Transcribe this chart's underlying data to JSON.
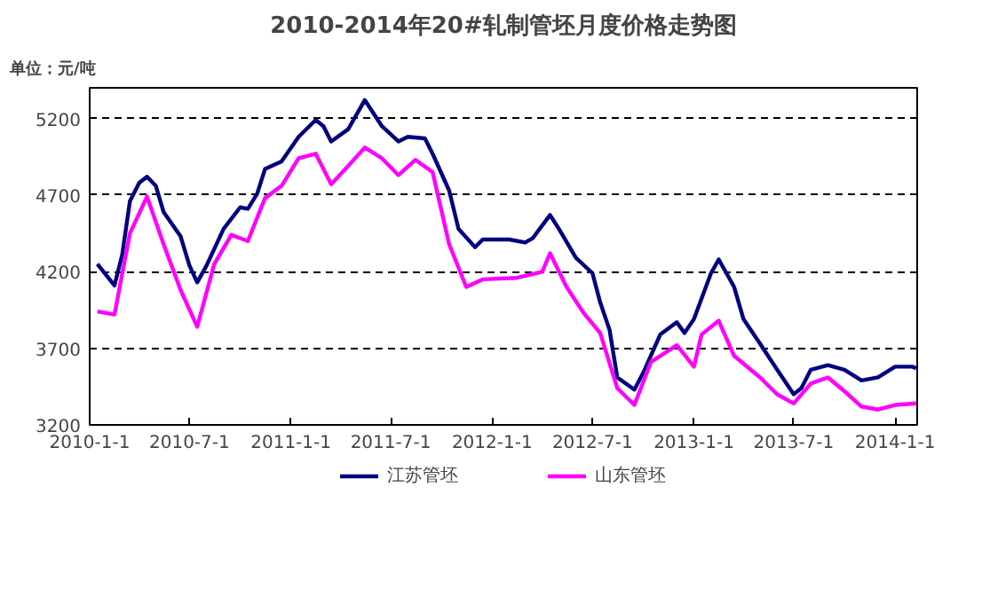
{
  "chart_data": {
    "type": "line",
    "title": "2010-2014年20#轧制管坯月度价格走势图",
    "annotations": [
      "单位：元/吨"
    ],
    "xlim": [
      "2010-01-01",
      "2014-02-10"
    ],
    "xticks": [
      {
        "value": "2010-01-01",
        "label": "2010-1-1"
      },
      {
        "value": "2010-07-01",
        "label": "2010-7-1"
      },
      {
        "value": "2011-01-01",
        "label": "2011-1-1"
      },
      {
        "value": "2011-07-01",
        "label": "2011-7-1"
      },
      {
        "value": "2012-01-01",
        "label": "2012-1-1"
      },
      {
        "value": "2012-07-01",
        "label": "2012-7-1"
      },
      {
        "value": "2013-01-01",
        "label": "2013-1-1"
      },
      {
        "value": "2013-07-01",
        "label": "2013-7-1"
      },
      {
        "value": "2014-01-01",
        "label": "2014-1-1"
      }
    ],
    "ylim": [
      3200,
      5400
    ],
    "yticks": [
      3200,
      3700,
      4200,
      4700,
      5200
    ],
    "grid": "y",
    "legend": "bottom",
    "line_style": "solid",
    "marker": "none",
    "series": [
      {
        "name": "江苏管坯",
        "color": "#000080",
        "x": [
          "2010-01-15",
          "2010-02-15",
          "2010-03-01",
          "2010-03-15",
          "2010-04-01",
          "2010-04-15",
          "2010-05-01",
          "2010-05-15",
          "2010-06-15",
          "2010-07-01",
          "2010-07-15",
          "2010-08-01",
          "2010-09-01",
          "2010-10-01",
          "2010-10-15",
          "2010-11-01",
          "2010-11-15",
          "2010-12-15",
          "2011-01-15",
          "2011-02-15",
          "2011-03-01",
          "2011-03-15",
          "2011-04-15",
          "2011-05-15",
          "2011-06-15",
          "2011-07-15",
          "2011-08-01",
          "2011-09-01",
          "2011-09-15",
          "2011-10-15",
          "2011-11-01",
          "2011-12-01",
          "2011-12-15",
          "2012-02-01",
          "2012-03-01",
          "2012-03-15",
          "2012-04-15",
          "2012-05-01",
          "2012-06-01",
          "2012-07-01",
          "2012-07-15",
          "2012-08-01",
          "2012-08-15",
          "2012-09-15",
          "2012-10-01",
          "2012-11-01",
          "2012-12-01",
          "2012-12-15",
          "2013-01-01",
          "2013-02-01",
          "2013-02-15",
          "2013-03-15",
          "2013-04-01",
          "2013-05-01",
          "2013-06-01",
          "2013-07-01",
          "2013-07-15",
          "2013-08-01",
          "2013-09-01",
          "2013-10-01",
          "2013-11-01",
          "2013-12-01",
          "2014-01-01",
          "2014-02-01",
          "2014-02-08"
        ],
        "values": [
          4250,
          4110,
          4310,
          4660,
          4780,
          4820,
          4760,
          4590,
          4430,
          4240,
          4130,
          4240,
          4480,
          4620,
          4610,
          4710,
          4870,
          4920,
          5080,
          5190,
          5150,
          5050,
          5130,
          5320,
          5150,
          5050,
          5080,
          5070,
          4970,
          4730,
          4480,
          4360,
          4410,
          4410,
          4390,
          4420,
          4570,
          4480,
          4290,
          4190,
          4000,
          3820,
          3510,
          3430,
          3540,
          3790,
          3870,
          3800,
          3890,
          4190,
          4280,
          4100,
          3890,
          3730,
          3560,
          3400,
          3440,
          3560,
          3590,
          3560,
          3490,
          3510,
          3580,
          3580,
          3570
        ]
      },
      {
        "name": "山东管坯",
        "color": "#ff00ff",
        "x": [
          "2010-01-15",
          "2010-02-15",
          "2010-03-15",
          "2010-04-15",
          "2010-05-15",
          "2010-06-15",
          "2010-07-15",
          "2010-08-15",
          "2010-09-15",
          "2010-10-15",
          "2010-11-15",
          "2010-12-15",
          "2011-01-15",
          "2011-02-15",
          "2011-03-15",
          "2011-04-15",
          "2011-05-15",
          "2011-06-15",
          "2011-07-15",
          "2011-08-15",
          "2011-09-15",
          "2011-10-15",
          "2011-11-15",
          "2011-12-15",
          "2012-02-15",
          "2012-04-01",
          "2012-04-15",
          "2012-05-15",
          "2012-06-15",
          "2012-07-15",
          "2012-08-15",
          "2012-09-15",
          "2012-10-15",
          "2012-12-01",
          "2013-01-01",
          "2013-01-15",
          "2013-02-15",
          "2013-03-15",
          "2013-05-01",
          "2013-06-01",
          "2013-07-01",
          "2013-08-01",
          "2013-09-01",
          "2013-10-01",
          "2013-11-01",
          "2013-12-01",
          "2014-01-01",
          "2014-02-08"
        ],
        "values": [
          3940,
          3920,
          4450,
          4690,
          4380,
          4080,
          3840,
          4250,
          4440,
          4400,
          4680,
          4760,
          4940,
          4970,
          4770,
          4890,
          5010,
          4940,
          4830,
          4930,
          4850,
          4380,
          4100,
          4150,
          4160,
          4200,
          4320,
          4100,
          3930,
          3800,
          3440,
          3330,
          3610,
          3720,
          3580,
          3790,
          3880,
          3650,
          3510,
          3400,
          3340,
          3470,
          3510,
          3420,
          3320,
          3300,
          3330,
          3340
        ]
      }
    ]
  }
}
